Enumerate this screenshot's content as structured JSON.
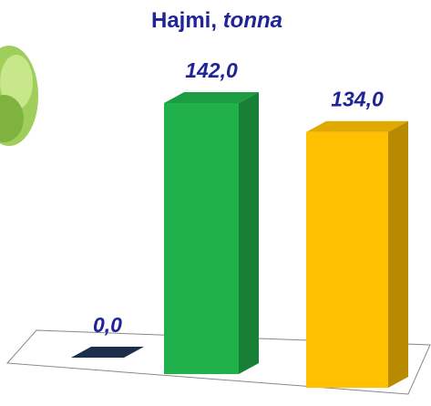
{
  "chart_data": {
    "type": "bar3d",
    "title": "Hajmi,",
    "unit": "tonna",
    "categories": [
      null,
      null,
      null
    ],
    "values": [
      0,
      142,
      134
    ],
    "value_labels": [
      "0,0",
      "142,0",
      "134,0"
    ],
    "colors": [
      "#1b2f4b",
      "#21b14b",
      "#ffc000"
    ]
  }
}
